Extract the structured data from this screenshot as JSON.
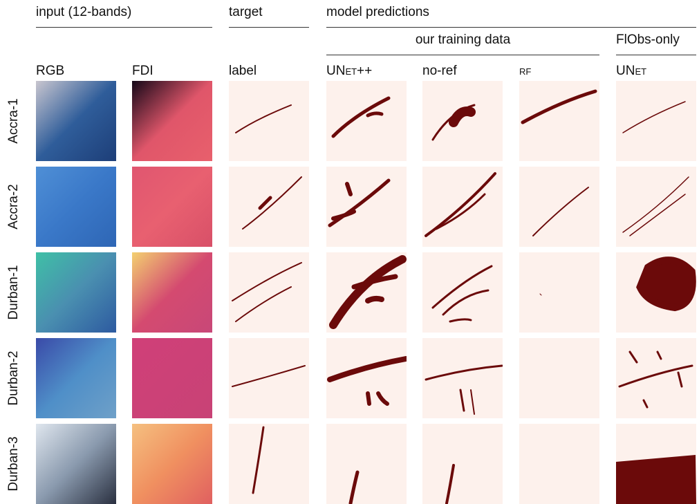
{
  "header": {
    "groups": [
      "input (12-bands)",
      "target",
      "model predictions"
    ],
    "subgroups": [
      "our training data",
      "FlObs-only"
    ]
  },
  "columns": [
    "RGB",
    "FDI",
    "label",
    "UNet++",
    "no-ref",
    "rf",
    "UNet"
  ],
  "rows": [
    "Accra-1",
    "Accra-2",
    "Durban-1",
    "Durban-2",
    "Durban-3"
  ]
}
